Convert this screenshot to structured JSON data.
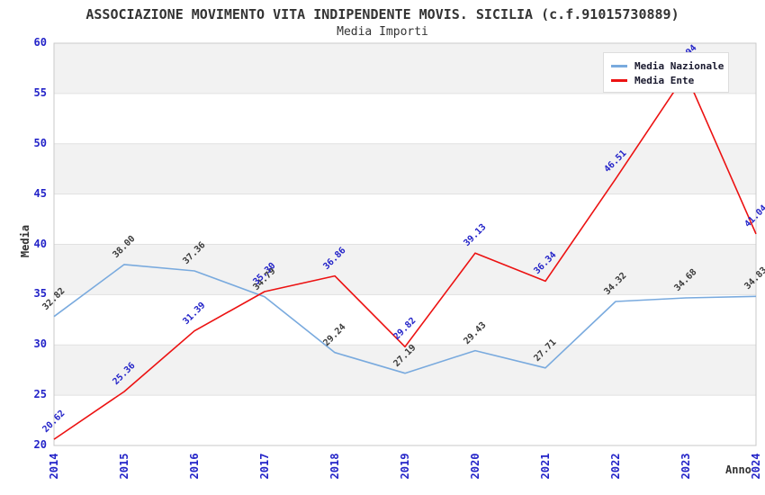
{
  "page": {
    "background": "#ffffff"
  },
  "chart_data": {
    "type": "line",
    "title": "ASSOCIAZIONE MOVIMENTO VITA INDIPENDENTE MOVIS. SICILIA (c.f.91015730889)",
    "subtitle": "Media Importi",
    "xlabel": "Anno",
    "ylabel": "Media",
    "ylim": [
      20,
      60
    ],
    "ytick_step": 5,
    "categories": [
      "2014",
      "2015",
      "2016",
      "2017",
      "2018",
      "2019",
      "2020",
      "2021",
      "2022",
      "2023",
      "2024"
    ],
    "series": [
      {
        "name": "Media Nazionale",
        "line_color": "#79aade",
        "label_color": "#3a3a3a",
        "values": [
          32.82,
          38.0,
          37.36,
          34.79,
          29.24,
          27.19,
          29.43,
          27.71,
          34.32,
          34.68,
          34.83
        ]
      },
      {
        "name": "Media Ente",
        "line_color": "#ec1212",
        "label_color": "#2323c8",
        "values": [
          20.62,
          25.36,
          31.39,
          35.3,
          36.86,
          29.82,
          39.13,
          36.34,
          46.51,
          56.94,
          41.04
        ],
        "note": "2023 value estimated from line slope; its data label is hidden behind the legend box"
      }
    ],
    "legend": {
      "position": "top-right",
      "entries": [
        "Media Nazionale",
        "Media Ente"
      ]
    },
    "grid": {
      "horizontal_bands": true,
      "band_color": "#f2f2f2",
      "line_color": "#e1e1e1"
    },
    "axis_tick_color": "#2323c8",
    "plot_border_color": "#c9c9c9"
  }
}
